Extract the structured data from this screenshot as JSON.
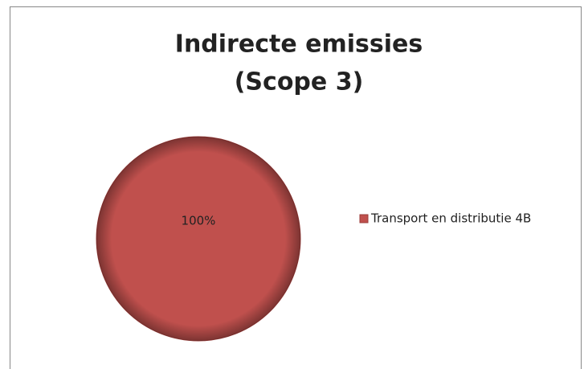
{
  "chart_data": {
    "type": "pie",
    "title": [
      "Indirecte emissies",
      "(Scope 3)"
    ],
    "categories": [
      "Transport en distributie 4B"
    ],
    "values": [
      100
    ],
    "value_labels": [
      "100%"
    ],
    "colors": [
      "#c0504d"
    ],
    "legend": "right"
  }
}
